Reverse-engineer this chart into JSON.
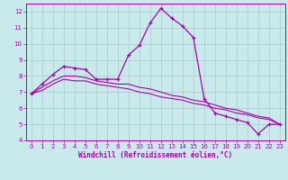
{
  "xlabel": "Windchill (Refroidissement éolien,°C)",
  "bg_color": "#c8eaea",
  "grid_color": "#b0c8c8",
  "line_color": "#aa00aa",
  "xlim": [
    -0.5,
    23.5
  ],
  "ylim": [
    4,
    12.5
  ],
  "xticks": [
    0,
    1,
    2,
    3,
    4,
    5,
    6,
    7,
    8,
    9,
    10,
    11,
    12,
    13,
    14,
    15,
    16,
    17,
    18,
    19,
    20,
    21,
    22,
    23
  ],
  "yticks": [
    4,
    5,
    6,
    7,
    8,
    9,
    10,
    11,
    12
  ],
  "line1_x": [
    0,
    1,
    2,
    3,
    4,
    5,
    6,
    7,
    8,
    9,
    10,
    11,
    12,
    13,
    14,
    15,
    16,
    17,
    18,
    19,
    20,
    21,
    22,
    23
  ],
  "line1_y": [
    6.9,
    7.5,
    8.1,
    8.6,
    8.5,
    8.4,
    7.8,
    7.8,
    7.8,
    9.3,
    9.9,
    11.3,
    12.2,
    11.6,
    11.1,
    10.4,
    6.6,
    5.7,
    5.5,
    5.3,
    5.1,
    4.4,
    5.0,
    5.0
  ],
  "line2_x": [
    0,
    1,
    2,
    3,
    4,
    5,
    6,
    7,
    8,
    9,
    10,
    11,
    12,
    13,
    14,
    15,
    16,
    17,
    18,
    19,
    20,
    21,
    22,
    23
  ],
  "line2_y": [
    6.9,
    7.3,
    7.7,
    8.0,
    8.0,
    7.9,
    7.7,
    7.6,
    7.5,
    7.5,
    7.3,
    7.2,
    7.0,
    6.8,
    6.7,
    6.5,
    6.4,
    6.2,
    6.0,
    5.9,
    5.7,
    5.5,
    5.4,
    5.0
  ],
  "line3_x": [
    0,
    1,
    2,
    3,
    4,
    5,
    6,
    7,
    8,
    9,
    10,
    11,
    12,
    13,
    14,
    15,
    16,
    17,
    18,
    19,
    20,
    21,
    22,
    23
  ],
  "line3_y": [
    6.9,
    7.1,
    7.5,
    7.8,
    7.7,
    7.7,
    7.5,
    7.4,
    7.3,
    7.2,
    7.0,
    6.9,
    6.7,
    6.6,
    6.5,
    6.3,
    6.2,
    6.0,
    5.9,
    5.7,
    5.6,
    5.4,
    5.3,
    5.0
  ],
  "tick_fontsize": 5,
  "xlabel_fontsize": 5.5
}
